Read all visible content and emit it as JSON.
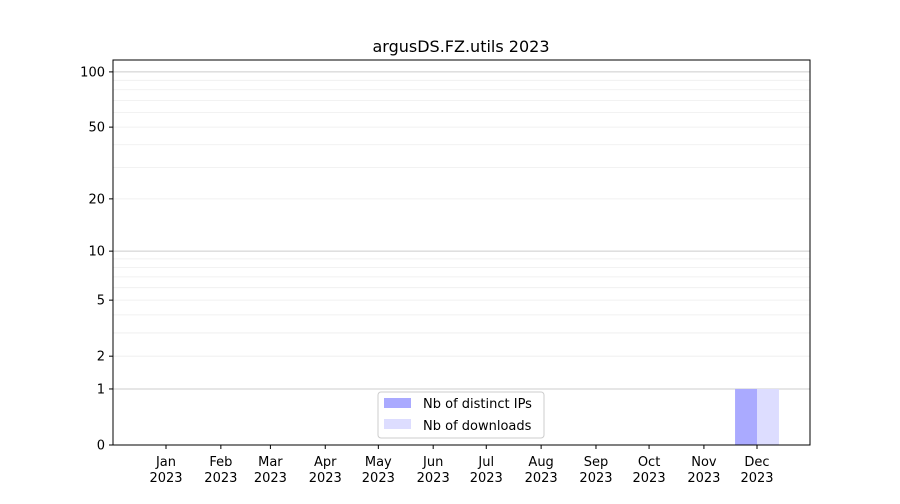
{
  "chart_data": {
    "type": "bar",
    "title": "argusDS.FZ.utils 2023",
    "xlabel": "",
    "ylabel": "",
    "y_scale": "log(1+x)",
    "ylim": [
      0,
      116
    ],
    "y_ticks": [
      0,
      1,
      2,
      5,
      10,
      20,
      50,
      100
    ],
    "y_tick_labels": [
      "0",
      "1",
      "2",
      "5",
      "10",
      "20",
      "50",
      "100"
    ],
    "grid": true,
    "legend_position": "lower-center",
    "categories": [
      "2023-01",
      "2023-02",
      "2023-03",
      "2023-04",
      "2023-05",
      "2023-06",
      "2023-07",
      "2023-08",
      "2023-09",
      "2023-10",
      "2023-11",
      "2023-12"
    ],
    "x_tick_labels": [
      [
        "Jan",
        "2023"
      ],
      [
        "Feb",
        "2023"
      ],
      [
        "Mar",
        "2023"
      ],
      [
        "Apr",
        "2023"
      ],
      [
        "May",
        "2023"
      ],
      [
        "Jun",
        "2023"
      ],
      [
        "Jul",
        "2023"
      ],
      [
        "Aug",
        "2023"
      ],
      [
        "Sep",
        "2023"
      ],
      [
        "Oct",
        "2023"
      ],
      [
        "Nov",
        "2023"
      ],
      [
        "Dec",
        "2023"
      ]
    ],
    "series": [
      {
        "name": "Nb of distinct IPs",
        "color": "#aaaaff",
        "values": [
          0,
          0,
          0,
          0,
          0,
          0,
          0,
          0,
          0,
          0,
          0,
          1
        ]
      },
      {
        "name": "Nb of downloads",
        "color": "#ddddff",
        "values": [
          0,
          0,
          0,
          0,
          0,
          0,
          0,
          0,
          0,
          0,
          0,
          1
        ]
      }
    ]
  }
}
